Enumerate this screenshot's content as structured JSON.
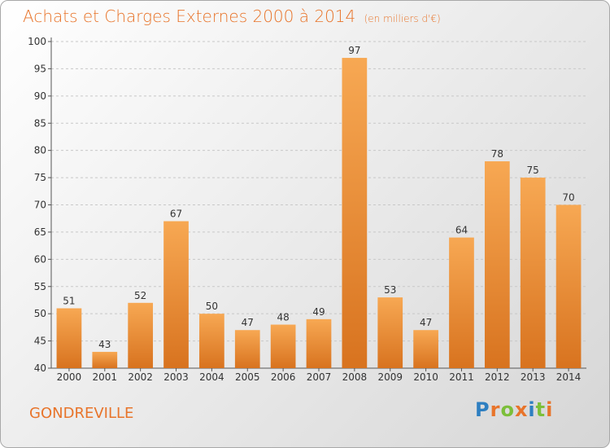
{
  "chart_data": {
    "type": "bar",
    "title": "Achats et Charges Externes 2000 à 2014",
    "unit": "(en milliers d'€)",
    "categories": [
      "2000",
      "2001",
      "2002",
      "2003",
      "2004",
      "2005",
      "2006",
      "2007",
      "2008",
      "2009",
      "2010",
      "2011",
      "2012",
      "2013",
      "2014"
    ],
    "values": [
      51,
      43,
      52,
      67,
      50,
      47,
      48,
      49,
      97,
      53,
      47,
      64,
      78,
      75,
      70
    ],
    "ylim": [
      40,
      100
    ],
    "yticks": [
      40,
      45,
      50,
      55,
      60,
      65,
      70,
      75,
      80,
      85,
      90,
      95,
      100
    ],
    "grid": true,
    "bar_color": "#f39a3e"
  },
  "footer": {
    "place": "GONDREVILLE",
    "logo": "Proxiti"
  },
  "colors": {
    "accent": "#e8742a",
    "logo_letters": [
      "#2e7fc1",
      "#e8742a",
      "#7cbf3a",
      "#e8742a",
      "#2e7fc1",
      "#7cbf3a",
      "#e8742a"
    ]
  }
}
